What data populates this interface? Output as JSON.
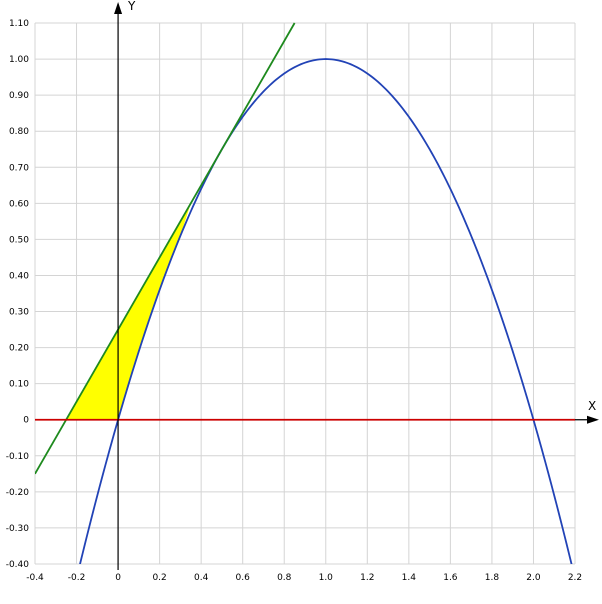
{
  "chart_data": {
    "type": "line",
    "title": "",
    "xlabel": "X",
    "ylabel": "Y",
    "xlim": [
      -0.4,
      2.2
    ],
    "ylim": [
      -0.4,
      1.1
    ],
    "grid": true,
    "x_ticks": [
      "-0.4",
      "-0.2",
      "0",
      "0.2",
      "0.4",
      "0.6",
      "0.8",
      "1.0",
      "1.2",
      "1.4",
      "1.6",
      "1.8",
      "2.0",
      "2.2"
    ],
    "y_ticks": [
      "-0.40",
      "-0.30",
      "-0.20",
      "-0.10",
      "0",
      "0.10",
      "0.20",
      "0.30",
      "0.40",
      "0.50",
      "0.60",
      "0.70",
      "0.80",
      "0.90",
      "1.00",
      "1.10"
    ],
    "series": [
      {
        "color": "#2243b6",
        "x": [
          -0.2,
          -0.1,
          0,
          0.1,
          0.2,
          0.3,
          0.4,
          0.5,
          0.6,
          0.7,
          0.8,
          0.9,
          1.0,
          1.1,
          1.2,
          1.3,
          1.4,
          1.5,
          1.6,
          1.7,
          1.8,
          1.9,
          2.0,
          2.1,
          2.2
        ],
        "y": [
          -0.44,
          -0.21,
          0,
          0.19,
          0.36,
          0.51,
          0.64,
          0.75,
          0.84,
          0.91,
          0.96,
          0.99,
          1.0,
          0.99,
          0.96,
          0.91,
          0.84,
          0.75,
          0.64,
          0.51,
          0.36,
          0.19,
          0,
          -0.21,
          -0.44
        ]
      },
      {
        "color": "#1e8a1e",
        "x": [
          -0.4,
          0.85
        ],
        "y": [
          -0.15,
          1.1
        ]
      },
      {
        "color": "#cc0000",
        "x": [
          -0.4,
          2.2
        ],
        "y": [
          0,
          0
        ]
      }
    ],
    "shaded_region": {
      "color": "#ffff00",
      "x": [
        -0.25,
        0,
        0.1,
        0.2,
        0.3,
        0.35
      ],
      "y": [
        0,
        0,
        0.19,
        0.36,
        0.51,
        0.6
      ]
    }
  }
}
